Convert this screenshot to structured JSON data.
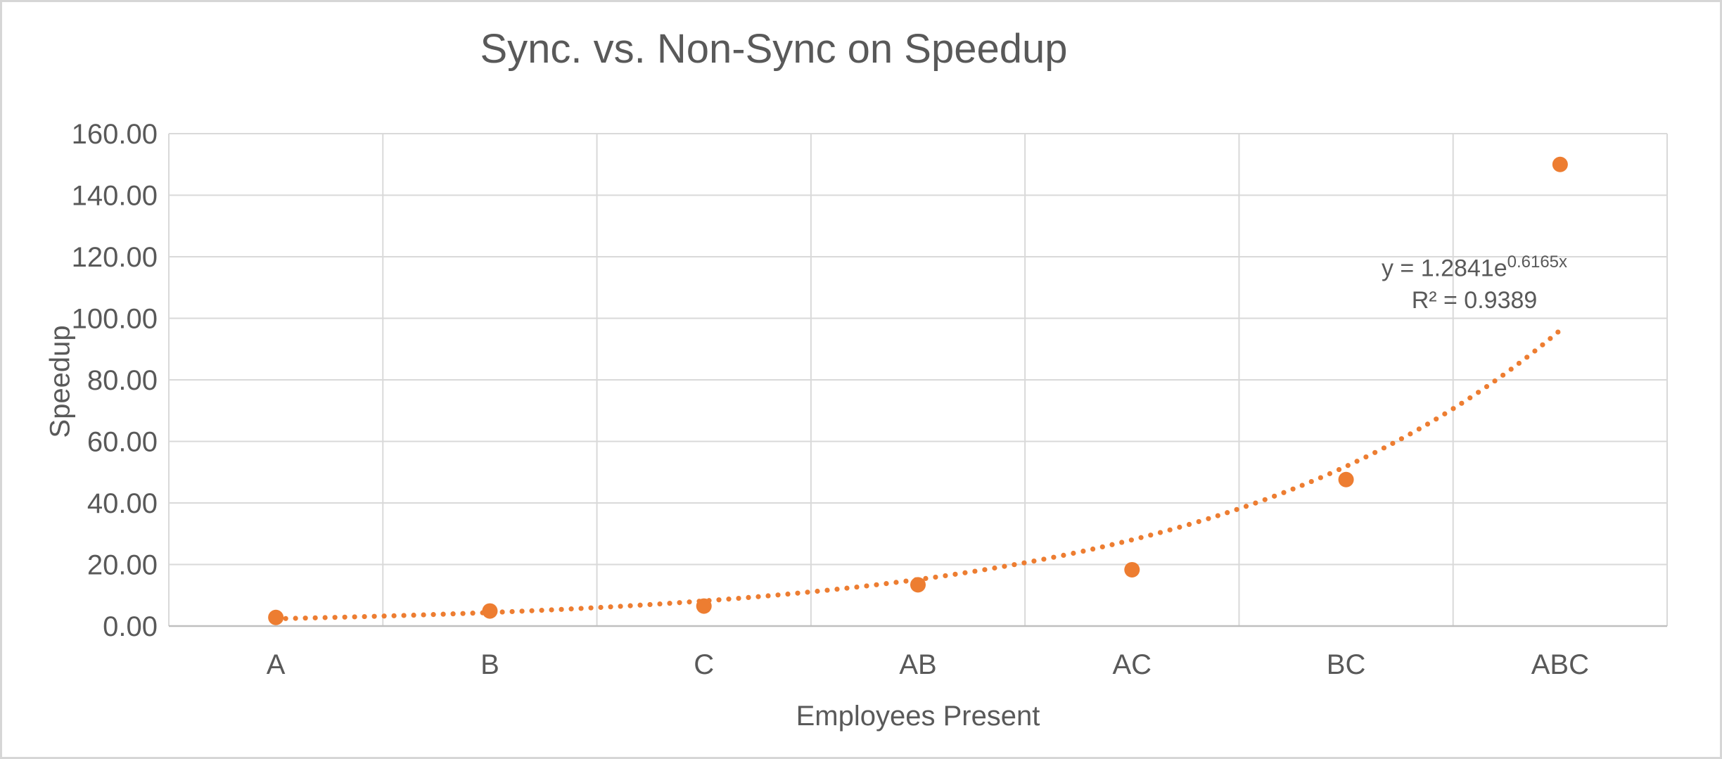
{
  "chart_data": {
    "type": "scatter",
    "title": "Sync. vs. Non-Sync on Speedup",
    "xlabel": "Employees Present",
    "ylabel": "Speedup",
    "categories": [
      "A",
      "B",
      "C",
      "AB",
      "AC",
      "BC",
      "ABC"
    ],
    "series": [
      {
        "name": "Speedup",
        "values": [
          2.8,
          4.9,
          6.5,
          13.4,
          18.3,
          47.6,
          150.0
        ]
      }
    ],
    "ylim": [
      0,
      160
    ],
    "ytick_step": 20,
    "ytick_labels": [
      "0.00",
      "20.00",
      "40.00",
      "60.00",
      "80.00",
      "100.00",
      "120.00",
      "140.00",
      "160.00"
    ],
    "grid": true,
    "legend": "none",
    "marker_color": "#ED7D31",
    "trendline": {
      "type": "exponential",
      "a": 1.2841,
      "b": 0.6165,
      "style": "dotted",
      "color": "#ED7D31",
      "equation_base": "y = 1.2841e",
      "equation_exponent": "0.6165x",
      "r2_text": "R² = 0.9389"
    },
    "colors": {
      "text": "#595959",
      "gridline": "#D9D9D9",
      "axis_line": "#BFBFBF",
      "border": "#D6D6D6",
      "background": "#FFFFFF"
    }
  }
}
